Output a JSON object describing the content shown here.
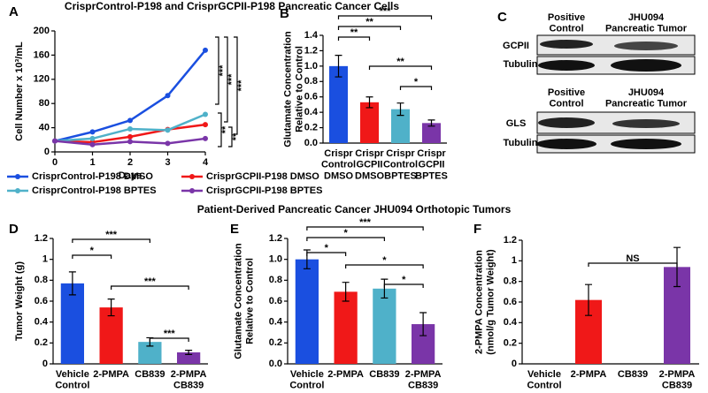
{
  "title": "CrisprControl-P198 and CrisprGCPII-P198 Pancreatic Cancer Cells",
  "section_title": "Patient-Derived Pancreatic Cancer JHU094 Orthotopic Tumors",
  "blots": {
    "label": "C",
    "panels": [
      {
        "columns": [
          "Positive\nControl",
          "JHU094\nPancreatic Tumor"
        ],
        "rows": [
          "GCPII",
          "Tubulin"
        ]
      },
      {
        "columns": [
          "Positive\nControl",
          "JHU094\nPancreatic Tumor"
        ],
        "rows": [
          "GLS",
          "Tubulin"
        ]
      }
    ]
  },
  "chart_data": [
    {
      "type": "line",
      "label": "A",
      "x_label": "Days",
      "y_label": "Cell Number x 10³/mL",
      "x": [
        0,
        1,
        2,
        3,
        4
      ],
      "xlim": [
        0,
        4
      ],
      "xticks": [
        0,
        1,
        2,
        3,
        4
      ],
      "ylim": [
        0,
        200
      ],
      "yticks": [
        0,
        40,
        80,
        120,
        160,
        200
      ],
      "series": [
        {
          "name": "CrisprControl-P198 DMSO",
          "color": "#1a4fe0",
          "values": [
            18,
            33,
            52,
            93,
            168
          ]
        },
        {
          "name": "CrisprGCPII-P198 DMSO",
          "color": "#f01818",
          "values": [
            18,
            16,
            25,
            37,
            45
          ]
        },
        {
          "name": "CrisprControl-P198 BPTES",
          "color": "#4fb1c9",
          "values": [
            18,
            22,
            38,
            36,
            62
          ]
        },
        {
          "name": "CrisprGCPII-P198 BPTES",
          "color": "#7a35a8",
          "values": [
            18,
            12,
            17,
            14,
            22
          ]
        }
      ],
      "annotations": [
        "***",
        "***",
        "***",
        "**",
        "**"
      ]
    },
    {
      "type": "bar",
      "label": "B",
      "y_label": "Glutamate Concentration\nRelative to Control",
      "categories": [
        "Crispr\nControl\nDMSO",
        "Crispr\nGCPII\nDMSO",
        "Crispr\nControl\nBPTES",
        "Crispr\nGCPII\nBPTES"
      ],
      "values": [
        1.0,
        0.53,
        0.44,
        0.26
      ],
      "errors": [
        0.14,
        0.07,
        0.08,
        0.04
      ],
      "colors": [
        "#1a4fe0",
        "#f01818",
        "#4fb1c9",
        "#7a35a8"
      ],
      "ylim": [
        0,
        1.4
      ],
      "yticks": [
        {
          "value": 0,
          "label": "0.0"
        },
        0.2,
        0.4,
        0.6,
        0.8,
        {
          "value": 1,
          "label": "1.0"
        },
        1.2,
        1.4
      ],
      "annotations": [
        "**",
        "**",
        "***",
        "**",
        "*"
      ]
    },
    {
      "type": "bar",
      "label": "D",
      "y_label": "Tumor Weight (g)",
      "categories": [
        "Vehicle\nControl",
        "2-PMPA",
        "CB839",
        "2-PMPA\nCB839"
      ],
      "values": [
        0.77,
        0.54,
        0.21,
        0.11
      ],
      "errors": [
        0.11,
        0.08,
        0.04,
        0.02
      ],
      "colors": [
        "#1a4fe0",
        "#f01818",
        "#4fb1c9",
        "#7a35a8"
      ],
      "ylim": [
        0,
        1.2
      ],
      "yticks": [
        0,
        0.2,
        0.4,
        0.6,
        0.8,
        1,
        1.2
      ],
      "annotations": [
        "***",
        "*",
        "***",
        "***"
      ]
    },
    {
      "type": "bar",
      "label": "E",
      "y_label": "Glutamate Concentration\nRelative to Control",
      "categories": [
        "Vehicle\nControl",
        "2-PMPA",
        "CB839",
        "2-PMPA\nCB839"
      ],
      "values": [
        1.0,
        0.69,
        0.72,
        0.38
      ],
      "errors": [
        0.09,
        0.09,
        0.09,
        0.11
      ],
      "colors": [
        "#1a4fe0",
        "#f01818",
        "#4fb1c9",
        "#7a35a8"
      ],
      "ylim": [
        0,
        1.2
      ],
      "yticks": [
        {
          "value": 0,
          "label": "0.0"
        },
        0.2,
        0.4,
        0.6,
        0.8,
        {
          "value": 1,
          "label": "1.0"
        },
        1.2
      ],
      "annotations": [
        "***",
        "*",
        "*",
        "*",
        "*"
      ]
    },
    {
      "type": "bar",
      "label": "F",
      "y_label": "2-PMPA Concentration\n(nmol/g Tumor Weight)",
      "categories": [
        "Vehicle\nControl",
        "2-PMPA",
        "CB839",
        "2-PMPA\nCB839"
      ],
      "values": [
        null,
        0.62,
        null,
        0.94
      ],
      "errors": [
        null,
        0.15,
        null,
        0.19
      ],
      "colors": [
        "#1a4fe0",
        "#f01818",
        "#4fb1c9",
        "#7a35a8"
      ],
      "ylim": [
        0,
        1.2
      ],
      "yticks": [
        0,
        0.2,
        0.4,
        0.6,
        0.8,
        1,
        1.2
      ],
      "annotations": [
        "NS"
      ]
    }
  ]
}
